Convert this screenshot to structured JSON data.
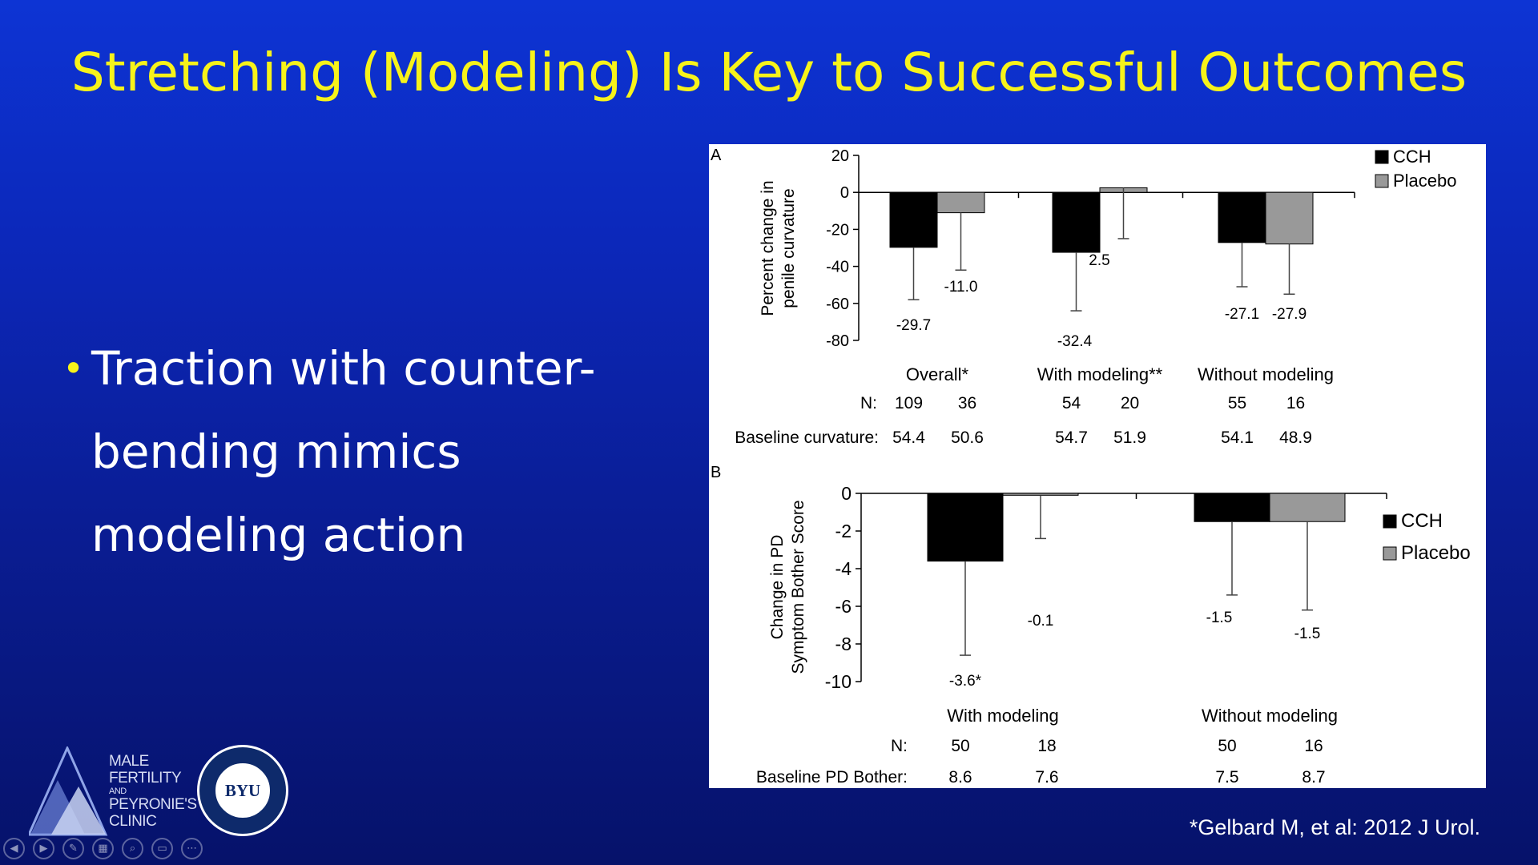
{
  "slide": {
    "title": "Stretching (Modeling) Is Key to Successful Outcomes",
    "bullet": "Traction with counter-bending mimics modeling action",
    "citation": "*Gelbard M, et al: 2012 J Urol.",
    "title_color": "#f7f31a"
  },
  "logo": {
    "lines": [
      "MALE",
      "FERTILITY",
      "AND",
      "PEYRONIE'S",
      "CLINIC"
    ],
    "seal_text": "BYU"
  },
  "toolbar": {
    "icons": [
      "previous-icon",
      "next-icon",
      "pen-icon",
      "slides-icon",
      "zoom-icon",
      "subtitles-icon",
      "more-icon"
    ]
  },
  "chart_data": [
    {
      "type": "bar",
      "panel": "A",
      "ylabel": "Percent change in penile curvature",
      "ylim": [
        -80,
        20
      ],
      "yticks": [
        20,
        0,
        -20,
        -40,
        -60,
        -80
      ],
      "categories": [
        "Overall*",
        "With modeling**",
        "Without modeling"
      ],
      "series": [
        {
          "name": "CCH",
          "color": "#000000",
          "values": [
            -29.7,
            -32.4,
            -27.1
          ],
          "error_low": [
            -58,
            -64,
            -51
          ]
        },
        {
          "name": "Placebo",
          "color": "#999999",
          "values": [
            -11.0,
            2.5,
            -27.9
          ],
          "error_low": [
            -42,
            -25,
            -55
          ]
        }
      ],
      "value_labels": [
        [
          "-29.7",
          "-32.4",
          "-27.1"
        ],
        [
          "-11.0",
          "2.5",
          "-27.9"
        ]
      ],
      "table": {
        "rows": [
          {
            "label": "N:",
            "values": [
              "109",
              "36",
              "54",
              "20",
              "55",
              "16"
            ]
          },
          {
            "label": "Baseline curvature:",
            "values": [
              "54.4",
              "50.6",
              "54.7",
              "51.9",
              "54.1",
              "48.9"
            ]
          }
        ]
      },
      "legend": [
        "CCH",
        "Placebo"
      ],
      "legend_position": "top-right"
    },
    {
      "type": "bar",
      "panel": "B",
      "ylabel": "Change in PD Symptom Bother Score",
      "ylim": [
        -10,
        0
      ],
      "yticks": [
        0,
        -2,
        -4,
        -6,
        -8,
        -10
      ],
      "categories": [
        "With modeling",
        "Without modeling"
      ],
      "series": [
        {
          "name": "CCH",
          "color": "#000000",
          "values": [
            -3.6,
            -1.5
          ],
          "error_low": [
            -8.6,
            -5.4
          ]
        },
        {
          "name": "Placebo",
          "color": "#999999",
          "values": [
            -0.1,
            -1.5
          ],
          "error_low": [
            -2.4,
            -6.2
          ]
        }
      ],
      "value_labels": [
        [
          "-3.6*",
          "-1.5"
        ],
        [
          "-0.1",
          "-1.5"
        ]
      ],
      "table": {
        "rows": [
          {
            "label": "N:",
            "values": [
              "50",
              "18",
              "50",
              "16"
            ]
          },
          {
            "label": "Baseline PD Bother:",
            "values": [
              "8.6",
              "7.6",
              "7.5",
              "8.7"
            ]
          }
        ]
      },
      "legend": [
        "CCH",
        "Placebo"
      ],
      "legend_position": "right"
    }
  ]
}
